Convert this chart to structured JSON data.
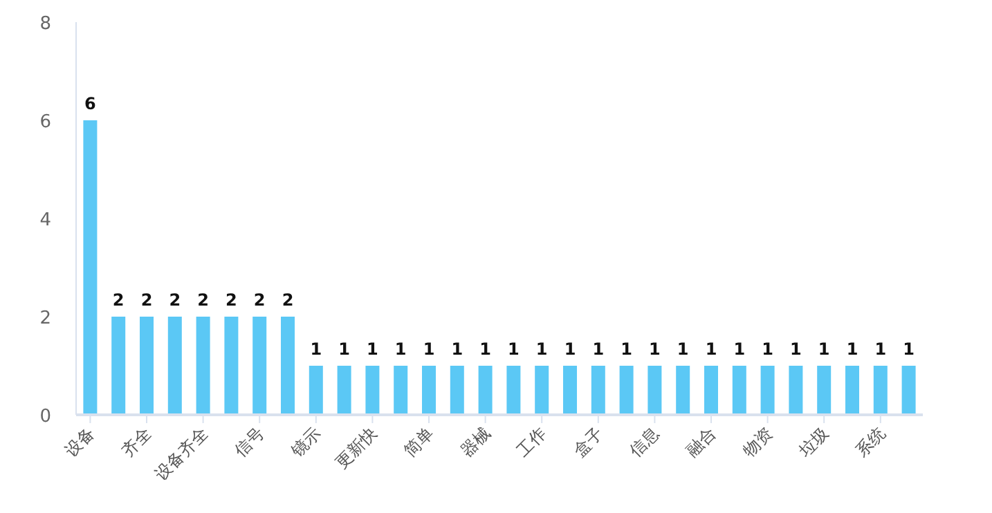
{
  "chart_data": {
    "type": "bar",
    "categories": [
      "设备",
      null,
      "齐全",
      null,
      "设备齐全",
      null,
      "信号",
      null,
      "镜示",
      null,
      "更新快",
      null,
      "简单",
      null,
      "器械",
      null,
      "工作",
      null,
      "盒子",
      null,
      "信息",
      null,
      "融合",
      null,
      "物资",
      null,
      "垃圾",
      null,
      "系统",
      null
    ],
    "values": [
      6,
      2,
      2,
      2,
      2,
      2,
      2,
      2,
      1,
      1,
      1,
      1,
      1,
      1,
      1,
      1,
      1,
      1,
      1,
      1,
      1,
      1,
      1,
      1,
      1,
      1,
      1,
      1,
      1,
      1
    ],
    "color": "#5bc8f5",
    "ylim": [
      0,
      8
    ],
    "yticks": [
      0,
      2,
      4,
      6,
      8
    ],
    "data_labels": true,
    "grid": false
  }
}
